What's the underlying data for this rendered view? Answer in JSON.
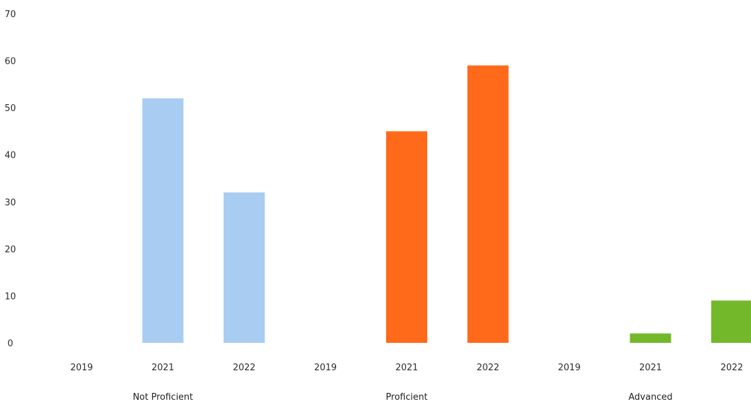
{
  "chart_data": {
    "type": "bar",
    "title": "",
    "xlabel": "",
    "ylabel": "",
    "ylim": [
      0,
      70
    ],
    "yticks": [
      0,
      10,
      20,
      30,
      40,
      50,
      60,
      70
    ],
    "grid": false,
    "legend": "none",
    "groups": [
      {
        "name": "Not Proficient",
        "color": "#a9cdf2",
        "years": [
          "2019",
          "2021",
          "2022"
        ],
        "values": [
          0,
          52,
          32
        ]
      },
      {
        "name": "Proficient",
        "color": "#ff6a1a",
        "years": [
          "2019",
          "2021",
          "2022"
        ],
        "values": [
          0,
          45,
          59
        ]
      },
      {
        "name": "Advanced",
        "color": "#73b82a",
        "years": [
          "2019",
          "2021",
          "2022"
        ],
        "values": [
          0,
          2,
          9
        ]
      }
    ]
  }
}
